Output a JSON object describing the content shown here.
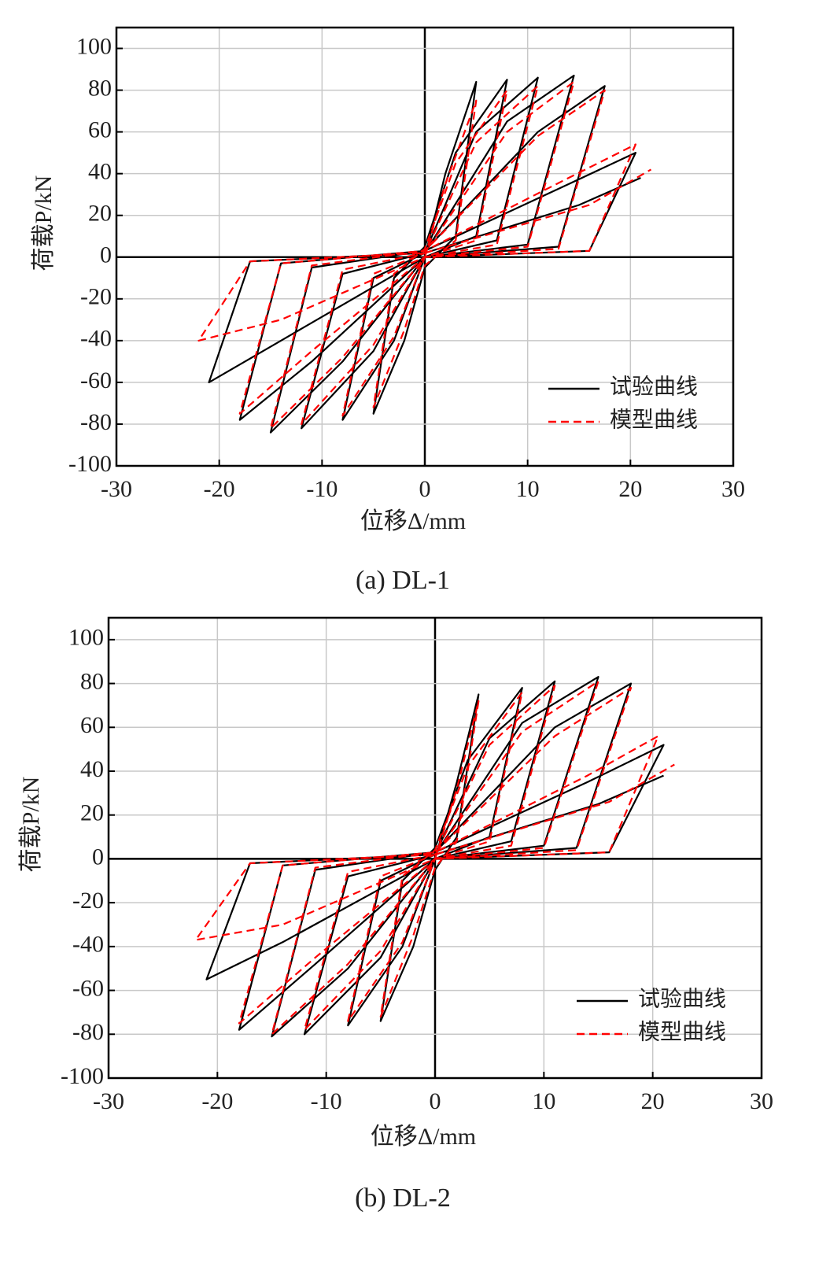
{
  "chart_data": [
    {
      "type": "line",
      "caption": "(a) DL-1",
      "xlabel": "位移Δ/mm",
      "ylabel": "荷载P/kN",
      "xlim": [
        -30,
        30
      ],
      "ylim": [
        -100,
        110
      ],
      "xticks": [
        -30,
        -20,
        -10,
        0,
        10,
        20,
        30
      ],
      "yticks": [
        -100,
        -80,
        -60,
        -40,
        -20,
        0,
        20,
        40,
        60,
        80,
        100
      ],
      "grid": true,
      "legend_loc": "lower right",
      "series": [
        {
          "name": "试验曲线",
          "color": "#000000",
          "linestyle": "solid",
          "x": [
            0,
            2,
            5,
            3,
            0,
            -2,
            -5,
            -3,
            0,
            3,
            8,
            5,
            0,
            -3,
            -8,
            -5,
            0,
            5,
            11,
            7,
            0,
            -5,
            -12,
            -8,
            0,
            8,
            14.5,
            10,
            0,
            -8,
            -15,
            -11,
            0,
            11,
            17.5,
            13,
            0,
            -11,
            -18,
            -14,
            0,
            14,
            20.5,
            16,
            0,
            -14,
            -21,
            -17,
            0,
            15,
            21
          ],
          "values": [
            0,
            40,
            84,
            10,
            -5,
            -40,
            -75,
            -10,
            5,
            50,
            85,
            10,
            0,
            -40,
            -78,
            -10,
            2,
            60,
            86,
            8,
            0,
            -45,
            -82,
            -8,
            2,
            65,
            87,
            6,
            0,
            -50,
            -84,
            -5,
            3,
            60,
            82,
            5,
            0,
            -50,
            -78,
            -3,
            3,
            35,
            50,
            3,
            0,
            -40,
            -60,
            -2,
            2,
            25,
            38
          ]
        },
        {
          "name": "模型曲线",
          "color": "#ff0000",
          "linestyle": "dashed",
          "x": [
            0,
            2,
            5,
            3,
            0,
            -2,
            -5,
            -3,
            0,
            3,
            8,
            5,
            0,
            -3,
            -8,
            -5,
            0,
            5,
            11,
            7,
            0,
            -5,
            -12,
            -8,
            0,
            8,
            14.5,
            10,
            0,
            -8,
            -15,
            -11,
            0,
            11,
            17.5,
            13,
            0,
            -11,
            -18,
            -14,
            0,
            14,
            20.5,
            16,
            0,
            -14,
            -22,
            -17,
            0,
            16,
            22
          ],
          "values": [
            0,
            35,
            75,
            8,
            -4,
            -35,
            -72,
            -8,
            4,
            45,
            80,
            8,
            0,
            -38,
            -76,
            -8,
            2,
            55,
            82,
            6,
            0,
            -42,
            -80,
            -6,
            2,
            60,
            84,
            5,
            0,
            -48,
            -82,
            -4,
            3,
            58,
            80,
            4,
            0,
            -45,
            -75,
            -3,
            3,
            38,
            54,
            3,
            0,
            -30,
            -40,
            -2,
            2,
            25,
            42
          ]
        }
      ]
    },
    {
      "type": "line",
      "caption": "(b) DL-2",
      "xlabel": "位移Δ/mm",
      "ylabel": "荷载P/kN",
      "xlim": [
        -30,
        30
      ],
      "ylim": [
        -100,
        110
      ],
      "xticks": [
        -30,
        -20,
        -10,
        0,
        10,
        20,
        30
      ],
      "yticks": [
        -100,
        -80,
        -60,
        -40,
        -20,
        0,
        20,
        40,
        60,
        80,
        100
      ],
      "grid": true,
      "legend_loc": "lower right",
      "series": [
        {
          "name": "试验曲线",
          "color": "#000000",
          "linestyle": "solid",
          "x": [
            0,
            2,
            4,
            2,
            0,
            -2,
            -5,
            -3,
            0,
            3,
            8,
            5,
            0,
            -3,
            -8,
            -5,
            0,
            5,
            11,
            7,
            0,
            -5,
            -12,
            -8,
            0,
            8,
            15,
            10,
            0,
            -8,
            -15,
            -11,
            0,
            11,
            18,
            13,
            0,
            -11,
            -18,
            -14,
            0,
            14,
            21,
            16,
            0,
            -14,
            -21,
            -17,
            0,
            15,
            21
          ],
          "values": [
            0,
            35,
            75,
            10,
            -5,
            -40,
            -74,
            -10,
            5,
            45,
            78,
            10,
            0,
            -40,
            -76,
            -10,
            2,
            55,
            81,
            8,
            0,
            -45,
            -80,
            -8,
            2,
            62,
            83,
            6,
            0,
            -50,
            -81,
            -5,
            3,
            60,
            80,
            5,
            0,
            -48,
            -78,
            -3,
            3,
            35,
            52,
            3,
            0,
            -38,
            -55,
            -2,
            2,
            25,
            38
          ]
        },
        {
          "name": "模型曲线",
          "color": "#ff0000",
          "linestyle": "dashed",
          "x": [
            0,
            2,
            4,
            2,
            0,
            -2,
            -5,
            -3,
            0,
            3,
            8,
            5,
            0,
            -3,
            -8,
            -5,
            0,
            5,
            11,
            7,
            0,
            -5,
            -12,
            -8,
            0,
            8,
            15,
            10,
            0,
            -8,
            -15,
            -11,
            0,
            11,
            18,
            13,
            0,
            -11,
            -18,
            -14,
            0,
            14,
            20.5,
            16,
            0,
            -14,
            -22,
            -17,
            0,
            16,
            22
          ],
          "values": [
            0,
            32,
            72,
            8,
            -4,
            -35,
            -72,
            -8,
            4,
            42,
            76,
            8,
            0,
            -38,
            -74,
            -8,
            2,
            52,
            79,
            6,
            0,
            -42,
            -78,
            -6,
            2,
            58,
            81,
            5,
            0,
            -48,
            -80,
            -4,
            3,
            56,
            78,
            4,
            0,
            -45,
            -75,
            -3,
            3,
            38,
            56,
            3,
            0,
            -30,
            -37,
            -2,
            2,
            26,
            43
          ]
        }
      ]
    }
  ]
}
